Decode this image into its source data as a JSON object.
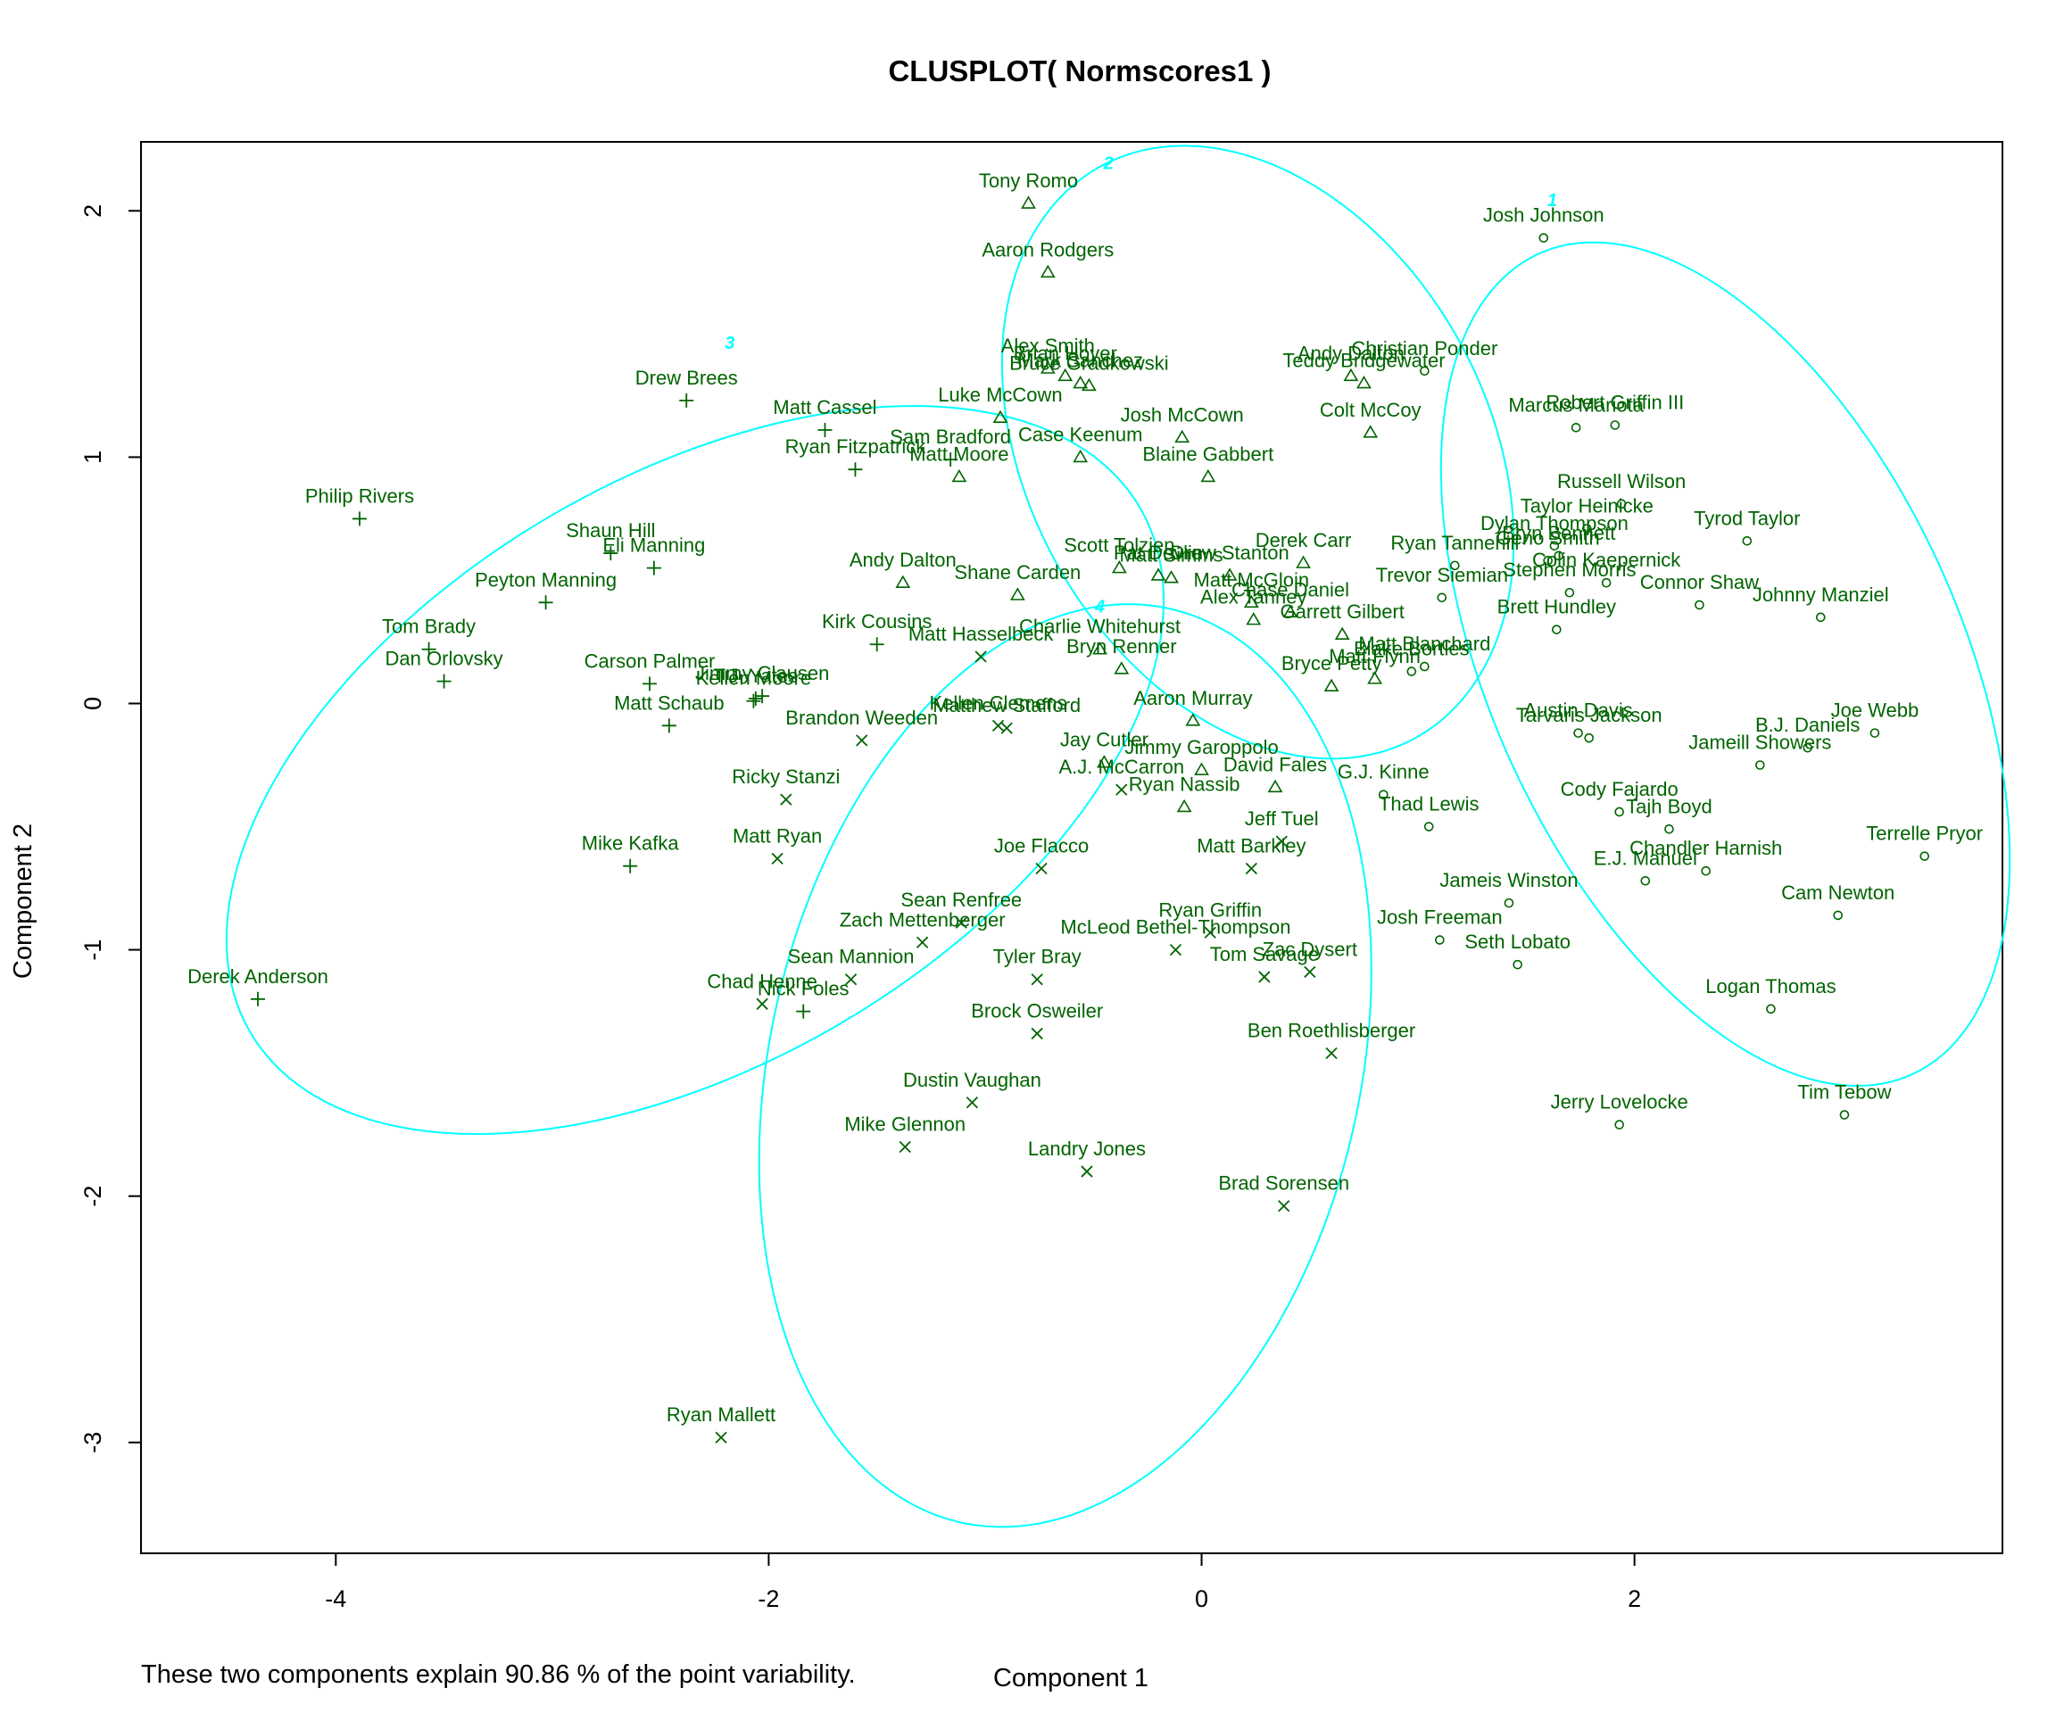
{
  "chart_data": {
    "type": "scatter",
    "title": "CLUSPLOT( Normscores1 )",
    "xlabel": "Component 1",
    "ylabel": "Component 2",
    "footnote": "These two components explain 90.86 % of the point variability.",
    "xlim": [
      -4.9,
      3.7
    ],
    "ylim": [
      -3.45,
      2.28
    ],
    "xticks": [
      -4,
      -2,
      0,
      2
    ],
    "yticks": [
      -3,
      -2,
      -1,
      0,
      1,
      2
    ],
    "grid": false,
    "legend": "none",
    "colors": {
      "points": "#006400",
      "ellipses": "#00ffff",
      "frame": "#000000"
    },
    "clusters": [
      {
        "id": "1",
        "symbol": "circle",
        "label_x": 1.62,
        "label_y": 2.02,
        "center": [
          2.42,
          0.16
        ],
        "a": 1.88,
        "b": 1.06,
        "angle_deg": -60
      },
      {
        "id": "2",
        "symbol": "triangle",
        "label_x": -0.43,
        "label_y": 2.17,
        "center": [
          0.26,
          1.02
        ],
        "a": 1.38,
        "b": 1.02,
        "angle_deg": -50
      },
      {
        "id": "3",
        "symbol": "plus",
        "label_x": -2.18,
        "label_y": 1.44,
        "center": [
          -2.34,
          -0.27
        ],
        "a": 2.32,
        "b": 1.22,
        "angle_deg": 25
      },
      {
        "id": "4",
        "symbol": "cross",
        "label_x": -0.47,
        "label_y": 0.37,
        "center": [
          -0.63,
          -1.47
        ],
        "a": 1.92,
        "b": 1.35,
        "angle_deg": 72
      }
    ],
    "series": [
      {
        "name": "1",
        "symbol": "circle",
        "points": [
          {
            "label": "Josh Johnson",
            "x": 1.58,
            "y": 1.89
          },
          {
            "label": "Marcus Mariota",
            "x": 1.73,
            "y": 1.12
          },
          {
            "label": "Robert Griffin III",
            "x": 1.91,
            "y": 1.13
          },
          {
            "label": "Christian Ponder",
            "x": 1.03,
            "y": 1.35
          },
          {
            "label": "Russell Wilson",
            "x": 1.94,
            "y": 0.81
          },
          {
            "label": "Taylor Heinicke",
            "x": 1.78,
            "y": 0.71
          },
          {
            "label": "Dylan Thompson",
            "x": 1.63,
            "y": 0.64
          },
          {
            "label": "Tyrod Taylor",
            "x": 2.52,
            "y": 0.66
          },
          {
            "label": "Ryan Tannehill",
            "x": 1.17,
            "y": 0.56
          },
          {
            "label": "Geno Smith",
            "x": 1.6,
            "y": 0.58
          },
          {
            "label": "Bryn Bennett",
            "x": 1.65,
            "y": 0.6
          },
          {
            "label": "Colin Kaepernick",
            "x": 1.87,
            "y": 0.49
          },
          {
            "label": "Trevor Siemian",
            "x": 1.11,
            "y": 0.43
          },
          {
            "label": "Stephen Morris",
            "x": 1.7,
            "y": 0.45
          },
          {
            "label": "Connor Shaw",
            "x": 2.3,
            "y": 0.4
          },
          {
            "label": "Johnny Manziel",
            "x": 2.86,
            "y": 0.35
          },
          {
            "label": "Brett Hundley",
            "x": 1.64,
            "y": 0.3
          },
          {
            "label": "Matt Blanchard",
            "x": 1.03,
            "y": 0.15
          },
          {
            "label": "Blake Bortles",
            "x": 0.97,
            "y": 0.13
          },
          {
            "label": "Austin Davis",
            "x": 1.74,
            "y": -0.12
          },
          {
            "label": "Tarvaris Jackson",
            "x": 1.79,
            "y": -0.14
          },
          {
            "label": "Joe Webb",
            "x": 3.11,
            "y": -0.12
          },
          {
            "label": "B.J. Daniels",
            "x": 2.8,
            "y": -0.18
          },
          {
            "label": "Jameill Showers",
            "x": 2.58,
            "y": -0.25
          },
          {
            "label": "G.J. Kinne",
            "x": 0.84,
            "y": -0.37
          },
          {
            "label": "Cody Fajardo",
            "x": 1.93,
            "y": -0.44
          },
          {
            "label": "Tajh Boyd",
            "x": 2.16,
            "y": -0.51
          },
          {
            "label": "Thad Lewis",
            "x": 1.05,
            "y": -0.5
          },
          {
            "label": "Terrelle Pryor",
            "x": 3.34,
            "y": -0.62
          },
          {
            "label": "Chandler Harnish",
            "x": 2.33,
            "y": -0.68
          },
          {
            "label": "E.J. Manuel",
            "x": 2.05,
            "y": -0.72
          },
          {
            "label": "Jameis Winston",
            "x": 1.42,
            "y": -0.81
          },
          {
            "label": "Cam Newton",
            "x": 2.94,
            "y": -0.86
          },
          {
            "label": "Josh Freeman",
            "x": 1.1,
            "y": -0.96
          },
          {
            "label": "Seth Lobato",
            "x": 1.46,
            "y": -1.06
          },
          {
            "label": "Logan Thomas",
            "x": 2.63,
            "y": -1.24
          },
          {
            "label": "Tim Tebow",
            "x": 2.97,
            "y": -1.67
          },
          {
            "label": "Jerry Lovelocke",
            "x": 1.93,
            "y": -1.71
          }
        ]
      },
      {
        "name": "2",
        "symbol": "triangle",
        "points": [
          {
            "label": "Tony Romo",
            "x": -0.8,
            "y": 2.03
          },
          {
            "label": "Aaron Rodgers",
            "x": -0.71,
            "y": 1.75
          },
          {
            "label": "Bruce Gradkowski",
            "x": -0.52,
            "y": 1.29
          },
          {
            "label": "Alex Smith",
            "x": -0.71,
            "y": 1.36
          },
          {
            "label": "Brian Hoyer",
            "x": -0.63,
            "y": 1.33
          },
          {
            "label": "Mark Sanchez",
            "x": -0.56,
            "y": 1.3
          },
          {
            "label": "Andy Dalton",
            "x": 0.69,
            "y": 1.33
          },
          {
            "label": "Teddy Bridgewater",
            "x": 0.75,
            "y": 1.3
          },
          {
            "label": "Luke McCown",
            "x": -0.93,
            "y": 1.16
          },
          {
            "label": "Colt McCoy",
            "x": 0.78,
            "y": 1.1
          },
          {
            "label": "Josh McCown",
            "x": -0.09,
            "y": 1.08
          },
          {
            "label": "Case Keenum",
            "x": -0.56,
            "y": 1.0
          },
          {
            "label": "Matt Moore",
            "x": -1.12,
            "y": 0.92
          },
          {
            "label": "Blaine Gabbert",
            "x": 0.03,
            "y": 0.92
          },
          {
            "label": "Scott Tolzien",
            "x": -0.38,
            "y": 0.55
          },
          {
            "label": "Pat Devlin",
            "x": -0.2,
            "y": 0.52
          },
          {
            "label": "Matt Simms",
            "x": -0.14,
            "y": 0.51
          },
          {
            "label": "Derek Carr",
            "x": 0.47,
            "y": 0.57
          },
          {
            "label": "Drew Stanton",
            "x": 0.13,
            "y": 0.52
          },
          {
            "label": "Chase Daniel",
            "x": 0.41,
            "y": 0.37
          },
          {
            "label": "Matt McGloin",
            "x": 0.23,
            "y": 0.41
          },
          {
            "label": "Andy Dalton",
            "x": -1.38,
            "y": 0.49
          },
          {
            "label": "Shane Carden",
            "x": -0.85,
            "y": 0.44
          },
          {
            "label": "Alex Tanney",
            "x": 0.24,
            "y": 0.34
          },
          {
            "label": "Garrett Gilbert",
            "x": 0.65,
            "y": 0.28
          },
          {
            "label": "Charlie Whitehurst",
            "x": -0.47,
            "y": 0.22
          },
          {
            "label": "Bryn Renner",
            "x": -0.37,
            "y": 0.14
          },
          {
            "label": "Bryce Petty",
            "x": 0.6,
            "y": 0.07
          },
          {
            "label": "Matt Flynn",
            "x": 0.8,
            "y": 0.1
          },
          {
            "label": "Aaron Murray",
            "x": -0.04,
            "y": -0.07
          },
          {
            "label": "Jay Cutler",
            "x": -0.45,
            "y": -0.24
          },
          {
            "label": "Jimmy Garoppolo",
            "x": 0.0,
            "y": -0.27
          },
          {
            "label": "David Fales",
            "x": 0.34,
            "y": -0.34
          },
          {
            "label": "Ryan Nassib",
            "x": -0.08,
            "y": -0.42
          }
        ]
      },
      {
        "name": "3",
        "symbol": "plus",
        "points": [
          {
            "label": "Drew Brees",
            "x": -2.38,
            "y": 1.23
          },
          {
            "label": "Matt Cassel",
            "x": -1.74,
            "y": 1.11
          },
          {
            "label": "Ryan Fitzpatrick",
            "x": -1.6,
            "y": 0.95
          },
          {
            "label": "Sam Bradford",
            "x": -1.16,
            "y": 0.99
          },
          {
            "label": "Philip Rivers",
            "x": -3.89,
            "y": 0.75
          },
          {
            "label": "Shaun Hill",
            "x": -2.73,
            "y": 0.61
          },
          {
            "label": "Eli Manning",
            "x": -2.53,
            "y": 0.55
          },
          {
            "label": "Peyton Manning",
            "x": -3.03,
            "y": 0.41
          },
          {
            "label": "Kirk Cousins",
            "x": -1.5,
            "y": 0.24
          },
          {
            "label": "Tom Brady",
            "x": -3.57,
            "y": 0.22
          },
          {
            "label": "Dan Orlovsky",
            "x": -3.5,
            "y": 0.09
          },
          {
            "label": "Carson Palmer",
            "x": -2.55,
            "y": 0.08
          },
          {
            "label": "Jimmy Clausen",
            "x": -2.03,
            "y": 0.03
          },
          {
            "label": "T.J. Yates",
            "x": -2.06,
            "y": 0.02
          },
          {
            "label": "Kellen Moore",
            "x": -2.07,
            "y": 0.01
          },
          {
            "label": "Matt Schaub",
            "x": -2.46,
            "y": -0.09
          },
          {
            "label": "Mike Kafka",
            "x": -2.64,
            "y": -0.66
          },
          {
            "label": "Derek Anderson",
            "x": -4.36,
            "y": -1.2
          },
          {
            "label": "Nick Foles",
            "x": -1.84,
            "y": -1.25
          }
        ]
      },
      {
        "name": "4",
        "symbol": "cross",
        "points": [
          {
            "label": "Matt Hasselbeck",
            "x": -1.02,
            "y": 0.19
          },
          {
            "label": "Brandon Weeden",
            "x": -1.57,
            "y": -0.15
          },
          {
            "label": "Kellen Clemens",
            "x": -0.94,
            "y": -0.09
          },
          {
            "label": "Matthew Stafford",
            "x": -0.9,
            "y": -0.1
          },
          {
            "label": "A.J. McCarron",
            "x": -0.37,
            "y": -0.35
          },
          {
            "label": "Ricky Stanzi",
            "x": -1.92,
            "y": -0.39
          },
          {
            "label": "Jeff Tuel",
            "x": 0.37,
            "y": -0.56
          },
          {
            "label": "Matt Ryan",
            "x": -1.96,
            "y": -0.63
          },
          {
            "label": "Joe Flacco",
            "x": -0.74,
            "y": -0.67
          },
          {
            "label": "Matt Barkley",
            "x": 0.23,
            "y": -0.67
          },
          {
            "label": "Sean Renfree",
            "x": -1.11,
            "y": -0.89
          },
          {
            "label": "Ryan Griffin",
            "x": 0.04,
            "y": -0.93
          },
          {
            "label": "Zach Mettenberger",
            "x": -1.29,
            "y": -0.97
          },
          {
            "label": "McLeod Bethel-Thompson",
            "x": -0.12,
            "y": -1.0
          },
          {
            "label": "Tom Savage",
            "x": 0.29,
            "y": -1.11
          },
          {
            "label": "Zac Dysert",
            "x": 0.5,
            "y": -1.09
          },
          {
            "label": "Sean Mannion",
            "x": -1.62,
            "y": -1.12
          },
          {
            "label": "Tyler Bray",
            "x": -0.76,
            "y": -1.12
          },
          {
            "label": "Chad Henne",
            "x": -2.03,
            "y": -1.22
          },
          {
            "label": "Brock Osweiler",
            "x": -0.76,
            "y": -1.34
          },
          {
            "label": "Ben Roethlisberger",
            "x": 0.6,
            "y": -1.42
          },
          {
            "label": "Dustin Vaughan",
            "x": -1.06,
            "y": -1.62
          },
          {
            "label": "Mike Glennon",
            "x": -1.37,
            "y": -1.8
          },
          {
            "label": "Landry Jones",
            "x": -0.53,
            "y": -1.9
          },
          {
            "label": "Brad Sorensen",
            "x": 0.38,
            "y": -2.04
          },
          {
            "label": "Ryan Mallett",
            "x": -2.22,
            "y": -2.98
          }
        ]
      }
    ]
  }
}
